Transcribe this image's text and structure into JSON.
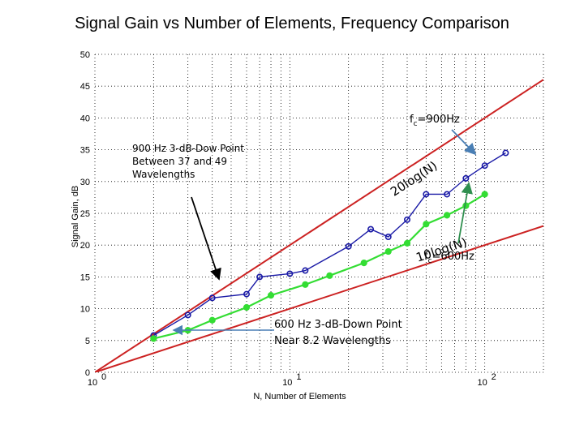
{
  "chart_data": {
    "type": "line",
    "title": "Signal Gain vs Number of Elements, Frequency Comparison",
    "xlabel": "N, Number of Elements",
    "ylabel": "Signal Gain, dB",
    "xscale": "log",
    "xlim": [
      1,
      200
    ],
    "ylim": [
      0,
      50
    ],
    "yticks": [
      0,
      5,
      10,
      15,
      20,
      25,
      30,
      35,
      40,
      45,
      50
    ],
    "xtick_labels": [
      {
        "base": "10",
        "exp": "0",
        "value": 1
      },
      {
        "base": "10",
        "exp": "1",
        "value": 10
      },
      {
        "base": "10",
        "exp": "2",
        "value": 100
      }
    ],
    "grid": "dotted",
    "series": [
      {
        "name": "fc=900Hz",
        "color": "#1a1aa6",
        "marker": "open-circle",
        "x": [
          2,
          3,
          4,
          6,
          7,
          10,
          12,
          20,
          26,
          32,
          40,
          50,
          64,
          80,
          100,
          128
        ],
        "y": [
          5.8,
          9.0,
          11.7,
          12.3,
          15.0,
          15.5,
          16.0,
          19.8,
          22.5,
          21.3,
          24.0,
          28.0,
          28.0,
          30.5,
          32.5,
          34.5
        ]
      },
      {
        "name": "fc=600Hz",
        "color": "#33dd33",
        "marker": "filled-circle",
        "x": [
          2,
          3,
          4,
          6,
          8,
          12,
          16,
          24,
          32,
          40,
          50,
          64,
          80,
          100
        ],
        "y": [
          5.3,
          6.6,
          8.2,
          10.2,
          12.1,
          13.8,
          15.2,
          17.2,
          19.0,
          20.3,
          23.3,
          24.7,
          26.2,
          28.0
        ]
      }
    ],
    "reference_lines": [
      {
        "label": "20log(N)",
        "color": "#cc2222",
        "slope_db_per_decade": 20
      },
      {
        "label": "10log(N)",
        "color": "#cc2222",
        "slope_db_per_decade": 10
      }
    ],
    "annotations": [
      {
        "id": "note900",
        "lines": [
          "900 Hz 3-dB-Dow Point",
          "Between 37 and 49",
          "Wavelengths"
        ]
      },
      {
        "id": "note600",
        "lines": [
          "600 Hz 3-dB-Down Point",
          "Near 8.2 Wavelengths"
        ]
      },
      {
        "id": "fc900",
        "base": "f",
        "sub": "c",
        "text": "=900Hz"
      },
      {
        "id": "fc600",
        "base": "f",
        "sub": "c",
        "text": "=600Hz"
      }
    ]
  }
}
